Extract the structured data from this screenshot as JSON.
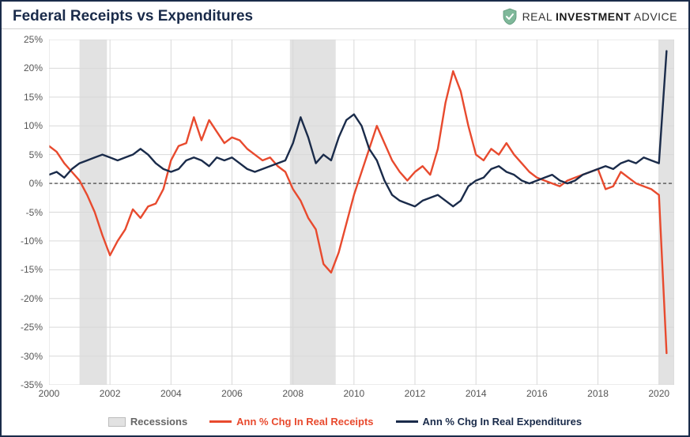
{
  "title": "Federal Receipts vs Expenditures",
  "brand": {
    "text_light": "REAL ",
    "text_bold": "INVESTMENT",
    "text_light2": " ADVICE",
    "icon_color": "#7fb89a",
    "icon_check": "#ffffff"
  },
  "chart": {
    "type": "line",
    "background_color": "#ffffff",
    "border_color": "#1a2b4a",
    "grid_color": "#d9d9d9",
    "zero_line_color": "#333333",
    "ylim": [
      -35,
      25
    ],
    "ytick_step": 5,
    "yticks": [
      25,
      20,
      15,
      10,
      5,
      0,
      -5,
      -10,
      -15,
      -20,
      -25,
      -30,
      -35
    ],
    "xlim": [
      2000,
      2020.5
    ],
    "xticks": [
      2000,
      2002,
      2004,
      2006,
      2008,
      2010,
      2012,
      2014,
      2016,
      2018,
      2020
    ],
    "y_suffix": "%",
    "recession_color": "#e2e2e2",
    "recessions": [
      {
        "start": 2001.0,
        "end": 2001.9
      },
      {
        "start": 2007.9,
        "end": 2009.4
      },
      {
        "start": 2020.0,
        "end": 2020.5
      }
    ],
    "series": [
      {
        "name": "Ann % Chg In Real Receipts",
        "color": "#e84a2e",
        "line_width": 2.4,
        "data": [
          [
            2000.0,
            6.5
          ],
          [
            2000.25,
            5.5
          ],
          [
            2000.5,
            3.5
          ],
          [
            2000.75,
            2.0
          ],
          [
            2001.0,
            0.5
          ],
          [
            2001.25,
            -2.0
          ],
          [
            2001.5,
            -5.0
          ],
          [
            2001.75,
            -9.0
          ],
          [
            2002.0,
            -12.5
          ],
          [
            2002.25,
            -10.0
          ],
          [
            2002.5,
            -8.0
          ],
          [
            2002.75,
            -4.5
          ],
          [
            2003.0,
            -6.0
          ],
          [
            2003.25,
            -4.0
          ],
          [
            2003.5,
            -3.5
          ],
          [
            2003.75,
            -1.0
          ],
          [
            2004.0,
            4.0
          ],
          [
            2004.25,
            6.5
          ],
          [
            2004.5,
            7.0
          ],
          [
            2004.75,
            11.5
          ],
          [
            2005.0,
            7.5
          ],
          [
            2005.25,
            11.0
          ],
          [
            2005.5,
            9.0
          ],
          [
            2005.75,
            7.0
          ],
          [
            2006.0,
            8.0
          ],
          [
            2006.25,
            7.5
          ],
          [
            2006.5,
            6.0
          ],
          [
            2006.75,
            5.0
          ],
          [
            2007.0,
            4.0
          ],
          [
            2007.25,
            4.5
          ],
          [
            2007.5,
            3.0
          ],
          [
            2007.75,
            2.0
          ],
          [
            2008.0,
            -1.0
          ],
          [
            2008.25,
            -3.0
          ],
          [
            2008.5,
            -6.0
          ],
          [
            2008.75,
            -8.0
          ],
          [
            2009.0,
            -14.0
          ],
          [
            2009.25,
            -15.5
          ],
          [
            2009.5,
            -12.0
          ],
          [
            2009.75,
            -7.0
          ],
          [
            2010.0,
            -2.0
          ],
          [
            2010.25,
            2.0
          ],
          [
            2010.5,
            6.0
          ],
          [
            2010.75,
            10.0
          ],
          [
            2011.0,
            7.0
          ],
          [
            2011.25,
            4.0
          ],
          [
            2011.5,
            2.0
          ],
          [
            2011.75,
            0.5
          ],
          [
            2012.0,
            2.0
          ],
          [
            2012.25,
            3.0
          ],
          [
            2012.5,
            1.5
          ],
          [
            2012.75,
            6.0
          ],
          [
            2013.0,
            14.0
          ],
          [
            2013.25,
            19.5
          ],
          [
            2013.5,
            16.0
          ],
          [
            2013.75,
            10.0
          ],
          [
            2014.0,
            5.0
          ],
          [
            2014.25,
            4.0
          ],
          [
            2014.5,
            6.0
          ],
          [
            2014.75,
            5.0
          ],
          [
            2015.0,
            7.0
          ],
          [
            2015.25,
            5.0
          ],
          [
            2015.5,
            3.5
          ],
          [
            2015.75,
            2.0
          ],
          [
            2016.0,
            1.0
          ],
          [
            2016.25,
            0.5
          ],
          [
            2016.5,
            0.0
          ],
          [
            2016.75,
            -0.5
          ],
          [
            2017.0,
            0.5
          ],
          [
            2017.25,
            1.0
          ],
          [
            2017.5,
            1.5
          ],
          [
            2017.75,
            2.0
          ],
          [
            2018.0,
            2.5
          ],
          [
            2018.25,
            -1.0
          ],
          [
            2018.5,
            -0.5
          ],
          [
            2018.75,
            2.0
          ],
          [
            2019.0,
            1.0
          ],
          [
            2019.25,
            0.0
          ],
          [
            2019.5,
            -0.5
          ],
          [
            2019.75,
            -1.0
          ],
          [
            2020.0,
            -2.0
          ],
          [
            2020.25,
            -29.5
          ]
        ]
      },
      {
        "name": "Ann % Chg In Real Expenditures",
        "color": "#1a2b4a",
        "line_width": 2.4,
        "data": [
          [
            2000.0,
            1.5
          ],
          [
            2000.25,
            2.0
          ],
          [
            2000.5,
            1.0
          ],
          [
            2000.75,
            2.5
          ],
          [
            2001.0,
            3.5
          ],
          [
            2001.25,
            4.0
          ],
          [
            2001.5,
            4.5
          ],
          [
            2001.75,
            5.0
          ],
          [
            2002.0,
            4.5
          ],
          [
            2002.25,
            4.0
          ],
          [
            2002.5,
            4.5
          ],
          [
            2002.75,
            5.0
          ],
          [
            2003.0,
            6.0
          ],
          [
            2003.25,
            5.0
          ],
          [
            2003.5,
            3.5
          ],
          [
            2003.75,
            2.5
          ],
          [
            2004.0,
            2.0
          ],
          [
            2004.25,
            2.5
          ],
          [
            2004.5,
            4.0
          ],
          [
            2004.75,
            4.5
          ],
          [
            2005.0,
            4.0
          ],
          [
            2005.25,
            3.0
          ],
          [
            2005.5,
            4.5
          ],
          [
            2005.75,
            4.0
          ],
          [
            2006.0,
            4.5
          ],
          [
            2006.25,
            3.5
          ],
          [
            2006.5,
            2.5
          ],
          [
            2006.75,
            2.0
          ],
          [
            2007.0,
            2.5
          ],
          [
            2007.25,
            3.0
          ],
          [
            2007.5,
            3.5
          ],
          [
            2007.75,
            4.0
          ],
          [
            2008.0,
            7.0
          ],
          [
            2008.25,
            11.5
          ],
          [
            2008.5,
            8.0
          ],
          [
            2008.75,
            3.5
          ],
          [
            2009.0,
            5.0
          ],
          [
            2009.25,
            4.0
          ],
          [
            2009.5,
            8.0
          ],
          [
            2009.75,
            11.0
          ],
          [
            2010.0,
            12.0
          ],
          [
            2010.25,
            10.0
          ],
          [
            2010.5,
            6.0
          ],
          [
            2010.75,
            4.0
          ],
          [
            2011.0,
            0.5
          ],
          [
            2011.25,
            -2.0
          ],
          [
            2011.5,
            -3.0
          ],
          [
            2011.75,
            -3.5
          ],
          [
            2012.0,
            -4.0
          ],
          [
            2012.25,
            -3.0
          ],
          [
            2012.5,
            -2.5
          ],
          [
            2012.75,
            -2.0
          ],
          [
            2013.0,
            -3.0
          ],
          [
            2013.25,
            -4.0
          ],
          [
            2013.5,
            -3.0
          ],
          [
            2013.75,
            -0.5
          ],
          [
            2014.0,
            0.5
          ],
          [
            2014.25,
            1.0
          ],
          [
            2014.5,
            2.5
          ],
          [
            2014.75,
            3.0
          ],
          [
            2015.0,
            2.0
          ],
          [
            2015.25,
            1.5
          ],
          [
            2015.5,
            0.5
          ],
          [
            2015.75,
            0.0
          ],
          [
            2016.0,
            0.5
          ],
          [
            2016.25,
            1.0
          ],
          [
            2016.5,
            1.5
          ],
          [
            2016.75,
            0.5
          ],
          [
            2017.0,
            0.0
          ],
          [
            2017.25,
            0.5
          ],
          [
            2017.5,
            1.5
          ],
          [
            2017.75,
            2.0
          ],
          [
            2018.0,
            2.5
          ],
          [
            2018.25,
            3.0
          ],
          [
            2018.5,
            2.5
          ],
          [
            2018.75,
            3.5
          ],
          [
            2019.0,
            4.0
          ],
          [
            2019.25,
            3.5
          ],
          [
            2019.5,
            4.5
          ],
          [
            2019.75,
            4.0
          ],
          [
            2020.0,
            3.5
          ],
          [
            2020.25,
            23.0
          ]
        ]
      }
    ],
    "legend": {
      "recessions_label": "Recessions",
      "receipts_label": "Ann % Chg In Real Receipts",
      "expenditures_label": "Ann % Chg In Real Expenditures"
    },
    "title_fontsize": 19,
    "brand_fontsize": 14,
    "tick_fontsize": 12,
    "legend_fontsize": 13
  }
}
